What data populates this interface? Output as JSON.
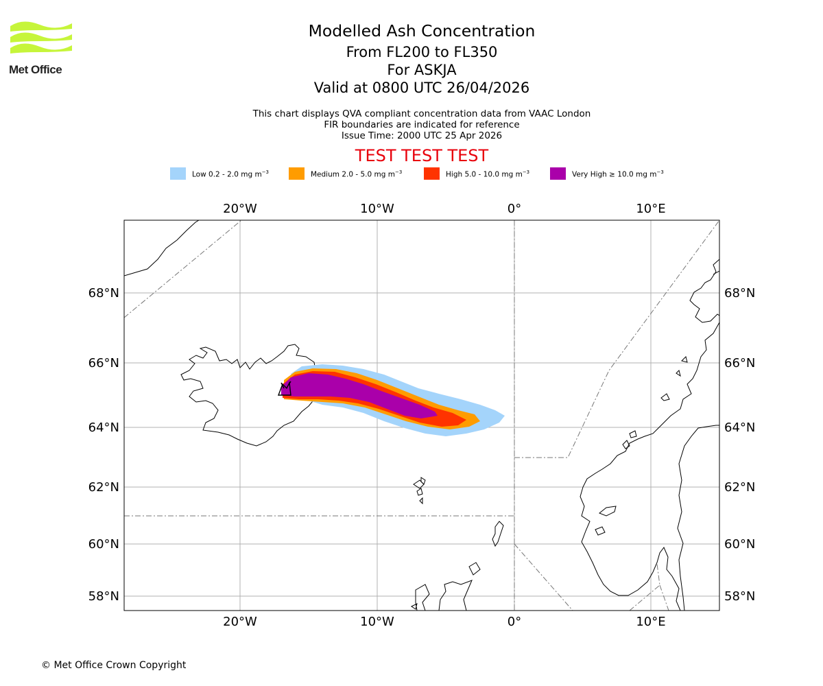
{
  "brand": {
    "name": "Met Office",
    "logo_color": "#c6f53a"
  },
  "title": {
    "main": "Modelled Ash Concentration",
    "levels": "From FL200 to FL350",
    "volcano": "For ASKJA",
    "valid": "Valid at 0800 UTC 26/04/2026"
  },
  "info": {
    "line1": "This chart displays QVA compliant concentration data from VAAC London",
    "line2": "FIR boundaries are indicated for reference",
    "line3": "Issue Time: 2000 UTC 25 Apr 2026"
  },
  "test_banner": "TEST TEST TEST",
  "legend": [
    {
      "label": "Low 0.2 - 2.0 mg m",
      "color": "#a4d4fb"
    },
    {
      "label": "Medium 2.0 - 5.0 mg m",
      "color": "#ff9c00"
    },
    {
      "label": "High 5.0 - 10.0 mg m",
      "color": "#ff3300"
    },
    {
      "label": "Very High ≥ 10.0 mg m",
      "color": "#aa00aa"
    }
  ],
  "legend_unit_exp": "−3",
  "map": {
    "lon_labels": [
      "20°W",
      "10°W",
      "0°",
      "10°E"
    ],
    "lat_labels": [
      "68°N",
      "66°N",
      "64°N",
      "62°N",
      "60°N",
      "58°N"
    ],
    "volcano_marker": "ASKJA"
  },
  "copyright": "© Met Office Crown Copyright"
}
